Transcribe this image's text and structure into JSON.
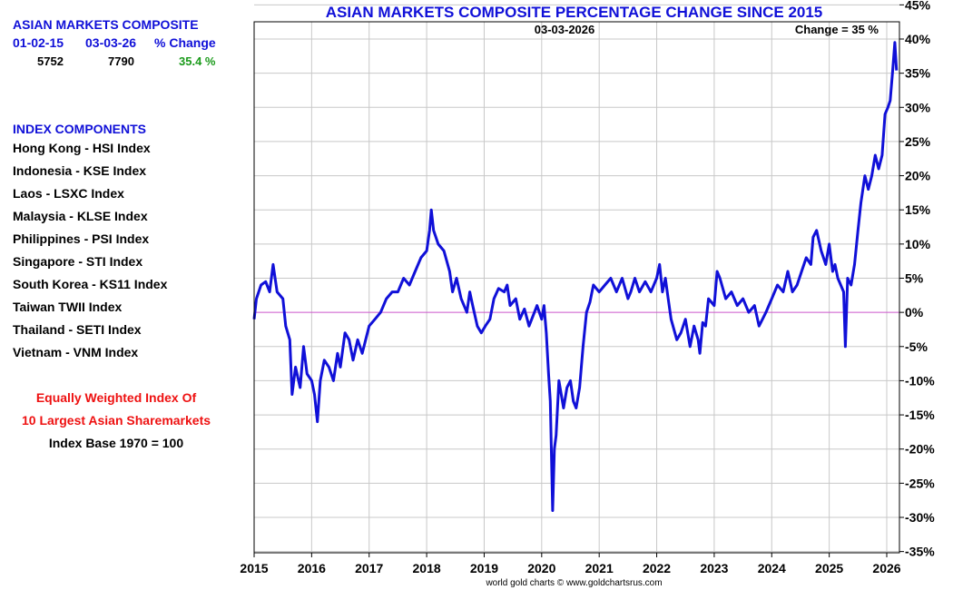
{
  "summary": {
    "title": "ASIAN MARKETS COMPOSITE",
    "date_start": "01-02-15",
    "date_end": "03-03-26",
    "change_label": "% Change",
    "value_start": "5752",
    "value_end": "7790",
    "change_value": "35.4 %"
  },
  "components": {
    "heading": "INDEX COMPONENTS",
    "items": [
      "Hong Kong  - HSI Index",
      "Indonesia - KSE Index",
      "Laos - LSXC Index",
      "Malaysia - KLSE Index",
      "Philippines - PSI Index",
      "Singapore - STI Index",
      "South Korea - KS11 Index",
      "Taiwan  TWII Index",
      "Thailand - SETI Index",
      "Vietnam - VNM Index"
    ]
  },
  "notes": {
    "line1": "Equally Weighted Index Of",
    "line2": "10 Largest Asian Sharemarkets",
    "line3": "Index Base 1970 = 100"
  },
  "footer": {
    "credit": "world gold charts © www.goldchartsrus.com"
  },
  "colors": {
    "series": "#1010d8",
    "zero_line": "#cc55cc",
    "grid": "#c8c8c8",
    "title": "#1010d8",
    "positive": "#1a9a1a",
    "note": "#ee1111"
  },
  "chart_data": {
    "type": "line",
    "title": "ASIAN MARKETS COMPOSITE PERCENTAGE CHANGE SINCE 2015",
    "date_annotation": "03-03-2026",
    "change_annotation": "Change = 35 %",
    "xlim": [
      2015.0,
      2026.2
    ],
    "ylim": [
      -35,
      45
    ],
    "x_ticks": [
      2015,
      2016,
      2017,
      2018,
      2019,
      2020,
      2021,
      2022,
      2023,
      2024,
      2025,
      2026
    ],
    "y_ticks": [
      -35,
      -30,
      -25,
      -20,
      -15,
      -10,
      -5,
      0,
      5,
      10,
      15,
      20,
      25,
      30,
      35,
      40,
      45
    ],
    "y_axis_position": "right",
    "grid": true,
    "reference_line": 0,
    "series": [
      {
        "x": [
          2015.0,
          2015.04,
          2015.12,
          2015.2,
          2015.27,
          2015.33,
          2015.4,
          2015.5,
          2015.55,
          2015.62,
          2015.66,
          2015.72,
          2015.8,
          2015.86,
          2015.92,
          2016.0,
          2016.05,
          2016.1,
          2016.15,
          2016.22,
          2016.3,
          2016.38,
          2016.45,
          2016.5,
          2016.58,
          2016.65,
          2016.72,
          2016.8,
          2016.88,
          2016.94,
          2017.0,
          2017.1,
          2017.2,
          2017.3,
          2017.4,
          2017.5,
          2017.6,
          2017.7,
          2017.8,
          2017.9,
          2018.0,
          2018.05,
          2018.08,
          2018.12,
          2018.2,
          2018.3,
          2018.4,
          2018.45,
          2018.52,
          2018.6,
          2018.7,
          2018.75,
          2018.8,
          2018.88,
          2018.95,
          2019.02,
          2019.1,
          2019.17,
          2019.25,
          2019.35,
          2019.4,
          2019.45,
          2019.55,
          2019.62,
          2019.7,
          2019.78,
          2019.85,
          2019.92,
          2020.0,
          2020.04,
          2020.08,
          2020.12,
          2020.15,
          2020.19,
          2020.22,
          2020.25,
          2020.3,
          2020.38,
          2020.44,
          2020.5,
          2020.55,
          2020.6,
          2020.66,
          2020.72,
          2020.78,
          2020.84,
          2020.9,
          2020.95,
          2021.0,
          2021.1,
          2021.2,
          2021.3,
          2021.4,
          2021.5,
          2021.55,
          2021.62,
          2021.7,
          2021.8,
          2021.9,
          2022.0,
          2022.05,
          2022.1,
          2022.15,
          2022.2,
          2022.25,
          2022.35,
          2022.42,
          2022.5,
          2022.58,
          2022.65,
          2022.72,
          2022.75,
          2022.8,
          2022.85,
          2022.9,
          2023.0,
          2023.05,
          2023.1,
          2023.2,
          2023.3,
          2023.4,
          2023.5,
          2023.6,
          2023.7,
          2023.78,
          2023.84,
          2023.9,
          2024.0,
          2024.1,
          2024.2,
          2024.28,
          2024.36,
          2024.44,
          2024.52,
          2024.6,
          2024.68,
          2024.72,
          2024.78,
          2024.86,
          2024.94,
          2025.0,
          2025.06,
          2025.1,
          2025.15,
          2025.2,
          2025.25,
          2025.28,
          2025.32,
          2025.38,
          2025.44,
          2025.5,
          2025.55,
          2025.62,
          2025.68,
          2025.74,
          2025.8,
          2025.86,
          2025.92,
          2025.97,
          2026.02,
          2026.06,
          2026.1,
          2026.14,
          2026.17
        ],
        "values": [
          -1.0,
          2.0,
          4.0,
          4.5,
          3.0,
          7.0,
          3.0,
          2.0,
          -2.0,
          -4.0,
          -12.0,
          -8.0,
          -11.0,
          -5.0,
          -9.0,
          -10.0,
          -12.0,
          -16.0,
          -10.0,
          -7.0,
          -8.0,
          -10.0,
          -6.0,
          -8.0,
          -3.0,
          -4.0,
          -7.0,
          -4.0,
          -6.0,
          -4.0,
          -2.0,
          -1.0,
          0.0,
          2.0,
          3.0,
          3.0,
          5.0,
          4.0,
          6.0,
          8.0,
          9.0,
          12.0,
          15.0,
          12.0,
          10.0,
          9.0,
          6.0,
          3.0,
          5.0,
          2.0,
          0.0,
          3.0,
          1.0,
          -2.0,
          -3.0,
          -2.0,
          -1.0,
          2.0,
          3.5,
          3.0,
          4.0,
          1.0,
          2.0,
          -1.0,
          0.5,
          -2.0,
          -0.5,
          1.0,
          -1.0,
          1.0,
          -3.0,
          -9.0,
          -13.0,
          -29.0,
          -20.0,
          -18.0,
          -10.0,
          -14.0,
          -11.0,
          -10.0,
          -13.0,
          -14.0,
          -11.0,
          -5.0,
          0.0,
          1.5,
          4.0,
          3.5,
          3.0,
          4.0,
          5.0,
          3.0,
          5.0,
          2.0,
          3.0,
          5.0,
          3.0,
          4.5,
          3.0,
          5.0,
          7.0,
          3.0,
          5.0,
          2.0,
          -1.0,
          -4.0,
          -3.0,
          -1.0,
          -5.0,
          -2.0,
          -4.0,
          -6.0,
          -1.5,
          -2.0,
          2.0,
          1.0,
          6.0,
          5.0,
          2.0,
          3.0,
          1.0,
          2.0,
          0.0,
          1.0,
          -2.0,
          -1.0,
          0.0,
          2.0,
          4.0,
          3.0,
          6.0,
          3.0,
          4.0,
          6.0,
          8.0,
          7.0,
          11.0,
          12.0,
          9.0,
          7.0,
          10.0,
          6.0,
          7.0,
          5.0,
          4.0,
          3.0,
          -5.0,
          5.0,
          4.0,
          7.0,
          12.0,
          16.0,
          20.0,
          18.0,
          20.0,
          23.0,
          21.0,
          23.0,
          29.0,
          30.0,
          31.0,
          35.0,
          39.5,
          35.4
        ]
      }
    ]
  }
}
